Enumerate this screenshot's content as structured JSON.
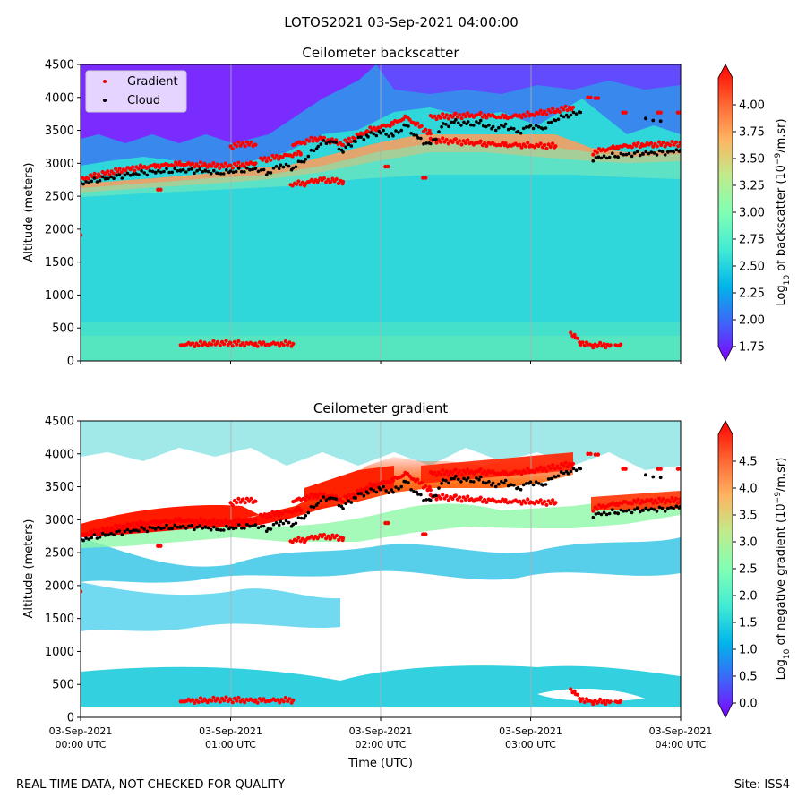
{
  "suptitle": "LOTOS2021 03-Sep-2021 04:00:00",
  "footer_left": "REAL TIME DATA, NOT CHECKED FOR QUALITY",
  "footer_right": "Site: ISS4",
  "xlabel": "Time (UTC)",
  "xticks": [
    {
      "t": 0,
      "date": "03-Sep-2021",
      "time": "00:00 UTC"
    },
    {
      "t": 60,
      "date": "03-Sep-2021",
      "time": "01:00 UTC"
    },
    {
      "t": 120,
      "date": "03-Sep-2021",
      "time": "02:00 UTC"
    },
    {
      "t": 180,
      "date": "03-Sep-2021",
      "time": "03:00 UTC"
    },
    {
      "t": 240,
      "date": "03-Sep-2021",
      "time": "04:00 UTC"
    }
  ],
  "colors": {
    "gradient_marker": "#ff0000",
    "cloud_marker": "#000000",
    "grid": "#b0b0b0"
  },
  "legend": {
    "gradient": "Gradient",
    "cloud": "Cloud"
  },
  "chart_data": [
    {
      "type": "heatmap",
      "title": "Ceilometer backscatter",
      "ylabel": "Altitude (meters)",
      "xlim_minutes": [
        0,
        240
      ],
      "ylim": [
        0,
        4500
      ],
      "yticks": [
        0,
        500,
        1000,
        1500,
        2000,
        2500,
        3000,
        3500,
        4000,
        4500
      ],
      "colorbar": {
        "label_parts": [
          "Log",
          "10",
          " of backscatter (10",
          "−9",
          "/m.sr)"
        ],
        "min": 1.75,
        "max": 4.25,
        "ticks": [
          "1.75",
          "2.00",
          "2.25",
          "2.50",
          "2.75",
          "3.00",
          "3.25",
          "3.50",
          "3.75",
          "4.00"
        ],
        "colormap": "rainbow"
      },
      "cloud_base": [
        [
          0,
          2720
        ],
        [
          10,
          2800
        ],
        [
          20,
          2860
        ],
        [
          30,
          2900
        ],
        [
          40,
          2920
        ],
        [
          50,
          2910
        ],
        [
          55,
          2870
        ],
        [
          60,
          2900
        ],
        [
          70,
          2940
        ],
        [
          75,
          2880
        ],
        [
          80,
          3000
        ],
        [
          85,
          2960
        ],
        [
          90,
          3100
        ],
        [
          95,
          3300
        ],
        [
          100,
          3380
        ],
        [
          105,
          3220
        ],
        [
          110,
          3380
        ],
        [
          115,
          3450
        ],
        [
          120,
          3500
        ],
        [
          125,
          3450
        ],
        [
          130,
          3600
        ],
        [
          135,
          3400
        ],
        [
          140,
          3300
        ],
        [
          145,
          3600
        ],
        [
          150,
          3650
        ],
        [
          155,
          3620
        ],
        [
          160,
          3640
        ],
        [
          165,
          3550
        ],
        [
          170,
          3600
        ],
        [
          175,
          3500
        ],
        [
          180,
          3600
        ],
        [
          185,
          3560
        ],
        [
          190,
          3700
        ],
        [
          195,
          3760
        ],
        [
          200,
          3800
        ]
      ],
      "cloud_base_late": [
        [
          205,
          3100
        ],
        [
          215,
          3150
        ],
        [
          225,
          3180
        ],
        [
          235,
          3190
        ],
        [
          240,
          3230
        ]
      ],
      "gradient_segments": [
        [
          [
            0,
            2760
          ],
          [
            10,
            2850
          ],
          [
            20,
            2920
          ],
          [
            30,
            2960
          ],
          [
            40,
            2990
          ],
          [
            50,
            2970
          ],
          [
            60,
            2960
          ],
          [
            70,
            3000
          ]
        ],
        [
          [
            60,
            3250
          ],
          [
            65,
            3300
          ],
          [
            70,
            3280
          ]
        ],
        [
          [
            72,
            3050
          ],
          [
            80,
            3100
          ],
          [
            88,
            3150
          ]
        ],
        [
          [
            85,
            3280
          ],
          [
            95,
            3380
          ],
          [
            105,
            3300
          ],
          [
            115,
            3500
          ],
          [
            125,
            3600
          ],
          [
            130,
            3700
          ],
          [
            140,
            3450
          ]
        ],
        [
          [
            140,
            3700
          ],
          [
            150,
            3720
          ],
          [
            160,
            3730
          ],
          [
            170,
            3700
          ],
          [
            180,
            3740
          ],
          [
            190,
            3800
          ],
          [
            197,
            3850
          ]
        ],
        [
          [
            140,
            3350
          ],
          [
            150,
            3330
          ],
          [
            160,
            3300
          ],
          [
            170,
            3280
          ],
          [
            180,
            3270
          ],
          [
            190,
            3260
          ]
        ],
        [
          [
            205,
            3170
          ],
          [
            215,
            3250
          ],
          [
            225,
            3280
          ],
          [
            235,
            3290
          ],
          [
            240,
            3300
          ]
        ],
        [
          [
            84,
            2680
          ],
          [
            90,
            2700
          ],
          [
            95,
            2750
          ],
          [
            100,
            2740
          ],
          [
            105,
            2720
          ]
        ],
        [
          [
            40,
            250
          ],
          [
            50,
            255
          ],
          [
            55,
            270
          ],
          [
            60,
            265
          ],
          [
            70,
            255
          ],
          [
            85,
            260
          ]
        ],
        [
          [
            196,
            430
          ],
          [
            198,
            350
          ],
          [
            200,
            280
          ],
          [
            203,
            240
          ],
          [
            205,
            240
          ],
          [
            207,
            240
          ],
          [
            210,
            240
          ],
          [
            212,
            240
          ]
        ],
        [
          [
            214,
            240
          ],
          [
            216,
            250
          ]
        ]
      ],
      "gradient_points": [
        [
          0,
          1910
        ],
        [
          32,
          2600
        ],
        [
          123,
          2950
        ],
        [
          138,
          2780
        ],
        [
          204,
          4000
        ],
        [
          207,
          3990
        ],
        [
          218,
          3770
        ],
        [
          232,
          3770
        ],
        [
          240,
          3770
        ]
      ],
      "cloud_points": [
        [
          226,
          3680
        ],
        [
          229,
          3650
        ],
        [
          232,
          3640
        ]
      ]
    },
    {
      "type": "heatmap",
      "title": "Ceilometer gradient",
      "ylabel": "Altitude (meters)",
      "xlim_minutes": [
        0,
        240
      ],
      "ylim": [
        0,
        4500
      ],
      "yticks": [
        0,
        500,
        1000,
        1500,
        2000,
        2500,
        3000,
        3500,
        4000,
        4500
      ],
      "colorbar": {
        "label_parts": [
          "Log",
          "10",
          " of negative gradient (10",
          "−9",
          "/m.sr)"
        ],
        "min": 0.0,
        "max": 5.0,
        "ticks": [
          "0.0",
          "0.5",
          "1.0",
          "1.5",
          "2.0",
          "2.5",
          "3.0",
          "3.5",
          "4.0",
          "4.5"
        ],
        "colormap": "rainbow"
      },
      "cloud_base": [
        [
          0,
          2720
        ],
        [
          10,
          2800
        ],
        [
          20,
          2860
        ],
        [
          30,
          2900
        ],
        [
          40,
          2920
        ],
        [
          50,
          2910
        ],
        [
          55,
          2870
        ],
        [
          60,
          2900
        ],
        [
          70,
          2940
        ],
        [
          75,
          2880
        ],
        [
          80,
          3000
        ],
        [
          85,
          2960
        ],
        [
          90,
          3100
        ],
        [
          95,
          3300
        ],
        [
          100,
          3380
        ],
        [
          105,
          3220
        ],
        [
          110,
          3380
        ],
        [
          115,
          3450
        ],
        [
          120,
          3500
        ],
        [
          125,
          3450
        ],
        [
          130,
          3600
        ],
        [
          135,
          3400
        ],
        [
          140,
          3300
        ],
        [
          145,
          3600
        ],
        [
          150,
          3650
        ],
        [
          155,
          3620
        ],
        [
          160,
          3640
        ],
        [
          165,
          3550
        ],
        [
          170,
          3600
        ],
        [
          175,
          3500
        ],
        [
          180,
          3600
        ],
        [
          185,
          3560
        ],
        [
          190,
          3700
        ],
        [
          195,
          3760
        ],
        [
          200,
          3800
        ]
      ],
      "cloud_base_late": [
        [
          205,
          3100
        ],
        [
          215,
          3150
        ],
        [
          225,
          3180
        ],
        [
          235,
          3190
        ],
        [
          240,
          3230
        ]
      ],
      "gradient_segments": [
        [
          [
            0,
            2760
          ],
          [
            10,
            2850
          ],
          [
            20,
            2920
          ],
          [
            30,
            2960
          ],
          [
            40,
            2990
          ],
          [
            50,
            2970
          ],
          [
            60,
            2960
          ],
          [
            70,
            3000
          ]
        ],
        [
          [
            60,
            3250
          ],
          [
            65,
            3300
          ],
          [
            70,
            3280
          ]
        ],
        [
          [
            72,
            3050
          ],
          [
            80,
            3100
          ],
          [
            88,
            3150
          ]
        ],
        [
          [
            85,
            3280
          ],
          [
            95,
            3380
          ],
          [
            105,
            3300
          ],
          [
            115,
            3500
          ],
          [
            125,
            3600
          ],
          [
            130,
            3700
          ],
          [
            140,
            3450
          ]
        ],
        [
          [
            140,
            3700
          ],
          [
            150,
            3720
          ],
          [
            160,
            3730
          ],
          [
            170,
            3700
          ],
          [
            180,
            3740
          ],
          [
            190,
            3800
          ],
          [
            197,
            3850
          ]
        ],
        [
          [
            140,
            3350
          ],
          [
            150,
            3330
          ],
          [
            160,
            3300
          ],
          [
            170,
            3280
          ],
          [
            180,
            3270
          ],
          [
            190,
            3260
          ]
        ],
        [
          [
            205,
            3170
          ],
          [
            215,
            3250
          ],
          [
            225,
            3280
          ],
          [
            235,
            3290
          ],
          [
            240,
            3300
          ]
        ],
        [
          [
            84,
            2680
          ],
          [
            90,
            2700
          ],
          [
            95,
            2750
          ],
          [
            100,
            2740
          ],
          [
            105,
            2720
          ]
        ],
        [
          [
            40,
            250
          ],
          [
            50,
            255
          ],
          [
            55,
            270
          ],
          [
            60,
            265
          ],
          [
            70,
            255
          ],
          [
            85,
            260
          ]
        ],
        [
          [
            196,
            430
          ],
          [
            198,
            350
          ],
          [
            200,
            280
          ],
          [
            203,
            240
          ],
          [
            205,
            240
          ],
          [
            207,
            240
          ],
          [
            210,
            240
          ],
          [
            212,
            240
          ]
        ],
        [
          [
            214,
            240
          ],
          [
            216,
            250
          ]
        ]
      ],
      "gradient_points": [
        [
          0,
          1910
        ],
        [
          32,
          2600
        ],
        [
          123,
          2950
        ],
        [
          138,
          2780
        ],
        [
          204,
          4000
        ],
        [
          207,
          3990
        ],
        [
          218,
          3770
        ],
        [
          232,
          3770
        ],
        [
          240,
          3770
        ]
      ],
      "cloud_points": [
        [
          226,
          3680
        ],
        [
          229,
          3650
        ],
        [
          232,
          3640
        ]
      ]
    }
  ]
}
